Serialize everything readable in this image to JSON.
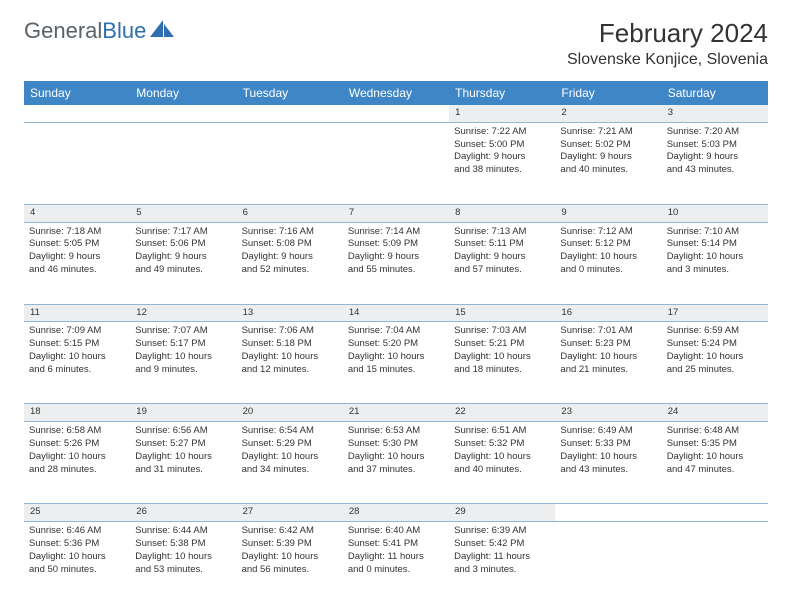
{
  "logo": {
    "part1": "General",
    "part2": "Blue"
  },
  "title": "February 2024",
  "location": "Slovenske Konjice, Slovenia",
  "colors": {
    "header_bg": "#3f86c7",
    "header_text": "#ffffff",
    "daynum_bg": "#eceeef",
    "divider": "#94b6d6",
    "body_text": "#333333",
    "logo_gray": "#5a6168",
    "logo_blue": "#2f6fb0"
  },
  "weekdays": [
    "Sunday",
    "Monday",
    "Tuesday",
    "Wednesday",
    "Thursday",
    "Friday",
    "Saturday"
  ],
  "weeks": [
    {
      "nums": [
        "",
        "",
        "",
        "",
        "1",
        "2",
        "3"
      ],
      "cells": [
        null,
        null,
        null,
        null,
        {
          "sunrise": "7:22 AM",
          "sunset": "5:00 PM",
          "dl1": "Daylight: 9 hours",
          "dl2": "and 38 minutes."
        },
        {
          "sunrise": "7:21 AM",
          "sunset": "5:02 PM",
          "dl1": "Daylight: 9 hours",
          "dl2": "and 40 minutes."
        },
        {
          "sunrise": "7:20 AM",
          "sunset": "5:03 PM",
          "dl1": "Daylight: 9 hours",
          "dl2": "and 43 minutes."
        }
      ]
    },
    {
      "nums": [
        "4",
        "5",
        "6",
        "7",
        "8",
        "9",
        "10"
      ],
      "cells": [
        {
          "sunrise": "7:18 AM",
          "sunset": "5:05 PM",
          "dl1": "Daylight: 9 hours",
          "dl2": "and 46 minutes."
        },
        {
          "sunrise": "7:17 AM",
          "sunset": "5:06 PM",
          "dl1": "Daylight: 9 hours",
          "dl2": "and 49 minutes."
        },
        {
          "sunrise": "7:16 AM",
          "sunset": "5:08 PM",
          "dl1": "Daylight: 9 hours",
          "dl2": "and 52 minutes."
        },
        {
          "sunrise": "7:14 AM",
          "sunset": "5:09 PM",
          "dl1": "Daylight: 9 hours",
          "dl2": "and 55 minutes."
        },
        {
          "sunrise": "7:13 AM",
          "sunset": "5:11 PM",
          "dl1": "Daylight: 9 hours",
          "dl2": "and 57 minutes."
        },
        {
          "sunrise": "7:12 AM",
          "sunset": "5:12 PM",
          "dl1": "Daylight: 10 hours",
          "dl2": "and 0 minutes."
        },
        {
          "sunrise": "7:10 AM",
          "sunset": "5:14 PM",
          "dl1": "Daylight: 10 hours",
          "dl2": "and 3 minutes."
        }
      ]
    },
    {
      "nums": [
        "11",
        "12",
        "13",
        "14",
        "15",
        "16",
        "17"
      ],
      "cells": [
        {
          "sunrise": "7:09 AM",
          "sunset": "5:15 PM",
          "dl1": "Daylight: 10 hours",
          "dl2": "and 6 minutes."
        },
        {
          "sunrise": "7:07 AM",
          "sunset": "5:17 PM",
          "dl1": "Daylight: 10 hours",
          "dl2": "and 9 minutes."
        },
        {
          "sunrise": "7:06 AM",
          "sunset": "5:18 PM",
          "dl1": "Daylight: 10 hours",
          "dl2": "and 12 minutes."
        },
        {
          "sunrise": "7:04 AM",
          "sunset": "5:20 PM",
          "dl1": "Daylight: 10 hours",
          "dl2": "and 15 minutes."
        },
        {
          "sunrise": "7:03 AM",
          "sunset": "5:21 PM",
          "dl1": "Daylight: 10 hours",
          "dl2": "and 18 minutes."
        },
        {
          "sunrise": "7:01 AM",
          "sunset": "5:23 PM",
          "dl1": "Daylight: 10 hours",
          "dl2": "and 21 minutes."
        },
        {
          "sunrise": "6:59 AM",
          "sunset": "5:24 PM",
          "dl1": "Daylight: 10 hours",
          "dl2": "and 25 minutes."
        }
      ]
    },
    {
      "nums": [
        "18",
        "19",
        "20",
        "21",
        "22",
        "23",
        "24"
      ],
      "cells": [
        {
          "sunrise": "6:58 AM",
          "sunset": "5:26 PM",
          "dl1": "Daylight: 10 hours",
          "dl2": "and 28 minutes."
        },
        {
          "sunrise": "6:56 AM",
          "sunset": "5:27 PM",
          "dl1": "Daylight: 10 hours",
          "dl2": "and 31 minutes."
        },
        {
          "sunrise": "6:54 AM",
          "sunset": "5:29 PM",
          "dl1": "Daylight: 10 hours",
          "dl2": "and 34 minutes."
        },
        {
          "sunrise": "6:53 AM",
          "sunset": "5:30 PM",
          "dl1": "Daylight: 10 hours",
          "dl2": "and 37 minutes."
        },
        {
          "sunrise": "6:51 AM",
          "sunset": "5:32 PM",
          "dl1": "Daylight: 10 hours",
          "dl2": "and 40 minutes."
        },
        {
          "sunrise": "6:49 AM",
          "sunset": "5:33 PM",
          "dl1": "Daylight: 10 hours",
          "dl2": "and 43 minutes."
        },
        {
          "sunrise": "6:48 AM",
          "sunset": "5:35 PM",
          "dl1": "Daylight: 10 hours",
          "dl2": "and 47 minutes."
        }
      ]
    },
    {
      "nums": [
        "25",
        "26",
        "27",
        "28",
        "29",
        "",
        ""
      ],
      "cells": [
        {
          "sunrise": "6:46 AM",
          "sunset": "5:36 PM",
          "dl1": "Daylight: 10 hours",
          "dl2": "and 50 minutes."
        },
        {
          "sunrise": "6:44 AM",
          "sunset": "5:38 PM",
          "dl1": "Daylight: 10 hours",
          "dl2": "and 53 minutes."
        },
        {
          "sunrise": "6:42 AM",
          "sunset": "5:39 PM",
          "dl1": "Daylight: 10 hours",
          "dl2": "and 56 minutes."
        },
        {
          "sunrise": "6:40 AM",
          "sunset": "5:41 PM",
          "dl1": "Daylight: 11 hours",
          "dl2": "and 0 minutes."
        },
        {
          "sunrise": "6:39 AM",
          "sunset": "5:42 PM",
          "dl1": "Daylight: 11 hours",
          "dl2": "and 3 minutes."
        },
        null,
        null
      ]
    }
  ]
}
